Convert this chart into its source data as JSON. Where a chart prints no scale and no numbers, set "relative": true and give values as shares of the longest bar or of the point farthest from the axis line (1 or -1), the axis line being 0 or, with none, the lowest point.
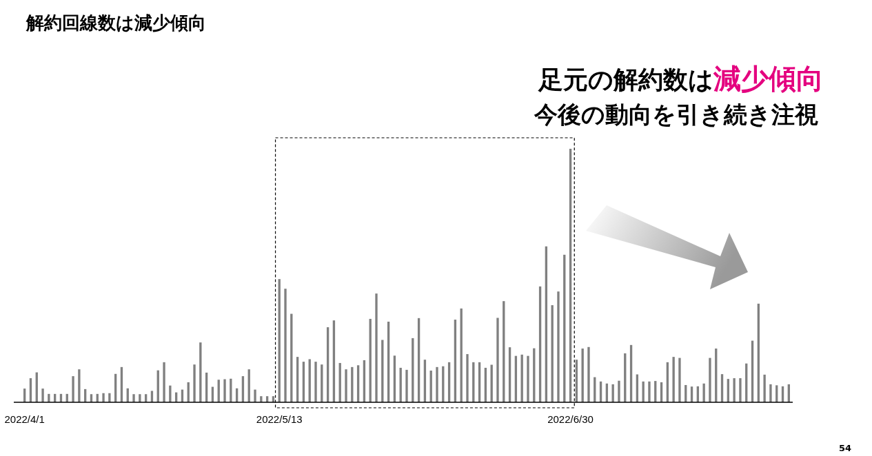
{
  "chart_data": {
    "type": "bar",
    "title": "解約回線数は減少傾向",
    "relative": true,
    "color": "#808080",
    "categories": [
      "2022/4/1",
      null,
      null,
      null,
      null,
      null,
      null,
      null,
      null,
      null,
      null,
      null,
      null,
      null,
      null,
      null,
      null,
      null,
      null,
      null,
      null,
      null,
      null,
      null,
      null,
      null,
      null,
      null,
      null,
      null,
      null,
      null,
      null,
      null,
      null,
      null,
      null,
      null,
      null,
      null,
      null,
      null,
      "2022/5/13",
      null,
      null,
      null,
      null,
      null,
      null,
      null,
      null,
      null,
      null,
      null,
      null,
      null,
      null,
      null,
      null,
      null,
      null,
      null,
      null,
      null,
      null,
      null,
      null,
      null,
      null,
      null,
      null,
      null,
      null,
      null,
      null,
      null,
      null,
      null,
      null,
      null,
      null,
      null,
      null,
      null,
      null,
      null,
      null,
      null,
      null,
      null,
      "2022/6/30",
      null,
      null,
      null,
      null,
      null,
      null,
      null,
      null,
      null,
      null,
      null,
      null,
      null,
      null,
      null,
      null,
      null,
      null,
      null,
      null,
      null,
      null,
      null,
      null,
      null,
      null,
      null,
      null,
      null,
      null,
      null,
      null,
      null,
      null,
      null,
      null
    ],
    "values": [
      0.054,
      0.095,
      0.118,
      0.054,
      0.033,
      0.033,
      0.033,
      0.033,
      0.103,
      0.13,
      0.052,
      0.032,
      0.033,
      0.036,
      0.036,
      0.112,
      0.139,
      0.055,
      0.032,
      0.032,
      0.032,
      0.045,
      0.126,
      0.158,
      0.066,
      0.039,
      0.05,
      0.079,
      0.149,
      0.236,
      0.117,
      0.061,
      0.089,
      0.091,
      0.093,
      0.055,
      0.103,
      0.13,
      0.05,
      0.024,
      0.024,
      0.024,
      0.486,
      0.448,
      0.349,
      0.179,
      0.16,
      0.17,
      0.16,
      0.149,
      0.296,
      0.323,
      0.155,
      0.13,
      0.139,
      0.146,
      0.166,
      0.329,
      0.429,
      0.246,
      0.318,
      0.184,
      0.136,
      0.128,
      0.253,
      0.332,
      0.168,
      0.125,
      0.139,
      0.142,
      0.158,
      0.326,
      0.37,
      0.19,
      0.158,
      0.158,
      0.136,
      0.148,
      0.333,
      0.399,
      0.217,
      0.183,
      0.188,
      0.183,
      0.213,
      0.457,
      0.615,
      0.383,
      0.437,
      0.582,
      1,
      0.168,
      0.212,
      0.218,
      0.099,
      0.082,
      0.074,
      0.071,
      0.085,
      0.193,
      0.226,
      0.11,
      0.082,
      0.082,
      0.084,
      0.079,
      0.158,
      0.179,
      0.175,
      0.068,
      0.062,
      0.063,
      0.074,
      0.175,
      0.212,
      0.111,
      0.092,
      0.095,
      0.095,
      0.153,
      0.243,
      0.389,
      0.109,
      0.071,
      0.067,
      0.063,
      0.071
    ],
    "annotations": [
      "足元の解約数は",
      "減少傾向",
      "今後の動向を引き続き注視",
      "54"
    ]
  }
}
